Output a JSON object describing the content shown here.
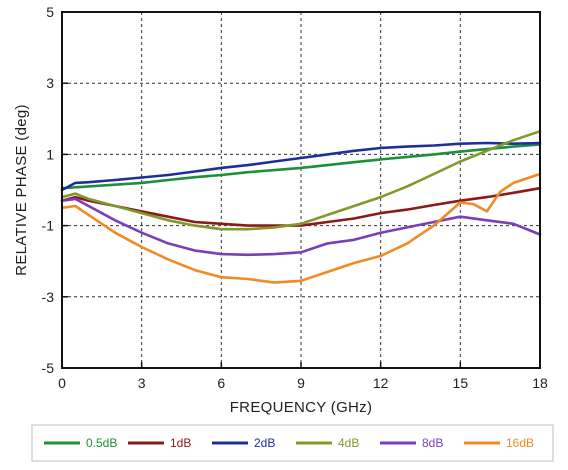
{
  "chart_data": {
    "type": "line",
    "xlabel": "FREQUENCY (GHz)",
    "ylabel": "RELATIVE PHASE (deg)",
    "xlim": [
      0,
      18
    ],
    "ylim": [
      -5,
      5
    ],
    "xticks": [
      "0",
      "3",
      "6",
      "9",
      "12",
      "15",
      "18"
    ],
    "yticks": [
      "-5",
      "-3",
      "-1",
      "1",
      "3",
      "5"
    ],
    "grid": true,
    "legend_position": "bottom",
    "series": [
      {
        "name": "0.5dB",
        "color": "#1e8f3a",
        "x": [
          0,
          1,
          2,
          3,
          4,
          5,
          6,
          7,
          8,
          9,
          10,
          11,
          12,
          13,
          14,
          15,
          16,
          17,
          18
        ],
        "y": [
          0.05,
          0.1,
          0.15,
          0.2,
          0.28,
          0.36,
          0.42,
          0.5,
          0.56,
          0.62,
          0.7,
          0.78,
          0.86,
          0.93,
          1.0,
          1.08,
          1.15,
          1.22,
          1.28
        ]
      },
      {
        "name": "1dB",
        "color": "#8b1a1a",
        "x": [
          0,
          0.5,
          1,
          2,
          3,
          4,
          5,
          6,
          7,
          8,
          9,
          10,
          11,
          12,
          13,
          14,
          15,
          16,
          17,
          18
        ],
        "y": [
          -0.3,
          -0.2,
          -0.3,
          -0.45,
          -0.6,
          -0.75,
          -0.9,
          -0.95,
          -1.0,
          -1.0,
          -1.0,
          -0.9,
          -0.8,
          -0.65,
          -0.55,
          -0.42,
          -0.3,
          -0.2,
          -0.08,
          0.05
        ]
      },
      {
        "name": "2dB",
        "color": "#1f2f9a",
        "x": [
          0,
          0.5,
          1,
          2,
          3,
          4,
          5,
          6,
          7,
          8,
          9,
          10,
          11,
          12,
          13,
          14,
          15,
          16,
          17,
          18
        ],
        "y": [
          0.0,
          0.2,
          0.22,
          0.28,
          0.35,
          0.42,
          0.52,
          0.62,
          0.7,
          0.8,
          0.9,
          1.0,
          1.1,
          1.18,
          1.22,
          1.25,
          1.3,
          1.32,
          1.3,
          1.32
        ]
      },
      {
        "name": "4dB",
        "color": "#7f9a2a",
        "x": [
          0,
          0.5,
          1,
          2,
          3,
          4,
          5,
          6,
          7,
          8,
          9,
          10,
          11,
          12,
          13,
          14,
          15,
          16,
          17,
          18
        ],
        "y": [
          -0.2,
          -0.1,
          -0.25,
          -0.45,
          -0.65,
          -0.85,
          -1.0,
          -1.1,
          -1.1,
          -1.05,
          -0.95,
          -0.7,
          -0.45,
          -0.2,
          0.1,
          0.45,
          0.8,
          1.1,
          1.4,
          1.65
        ]
      },
      {
        "name": "8dB",
        "color": "#7a3fb8",
        "x": [
          0,
          0.5,
          1,
          2,
          3,
          4,
          5,
          6,
          7,
          8,
          9,
          10,
          11,
          12,
          13,
          14,
          15,
          16,
          17,
          18
        ],
        "y": [
          -0.3,
          -0.25,
          -0.45,
          -0.85,
          -1.2,
          -1.5,
          -1.7,
          -1.8,
          -1.82,
          -1.8,
          -1.75,
          -1.5,
          -1.4,
          -1.2,
          -1.05,
          -0.9,
          -0.75,
          -0.85,
          -0.95,
          -1.25
        ]
      },
      {
        "name": "16dB",
        "color": "#f08a24",
        "x": [
          0,
          0.5,
          1,
          2,
          3,
          4,
          5,
          6,
          7,
          8,
          9,
          10,
          11,
          12,
          13,
          14,
          15,
          15.5,
          16,
          16.5,
          17,
          18
        ],
        "y": [
          -0.5,
          -0.45,
          -0.7,
          -1.2,
          -1.6,
          -1.95,
          -2.25,
          -2.45,
          -2.5,
          -2.6,
          -2.55,
          -2.3,
          -2.05,
          -1.85,
          -1.5,
          -1.0,
          -0.35,
          -0.4,
          -0.6,
          -0.05,
          0.2,
          0.45
        ]
      }
    ]
  }
}
